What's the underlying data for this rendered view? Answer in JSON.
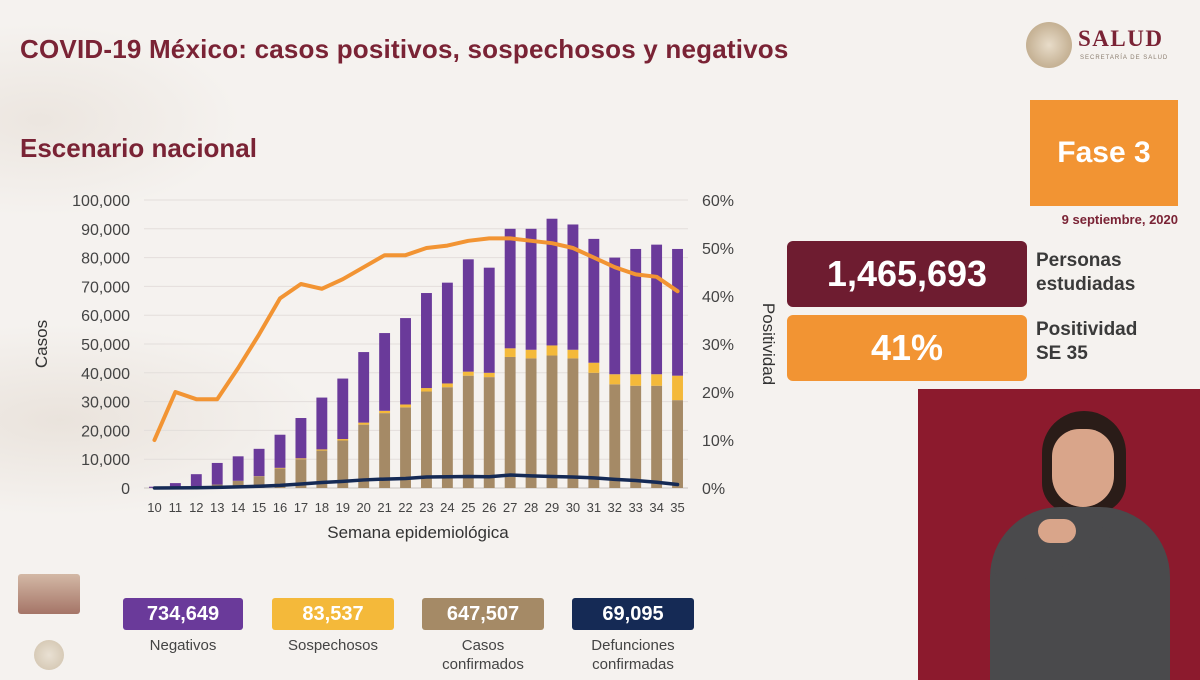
{
  "header": {
    "title": "COVID-19 México: casos positivos, sospechosos y negativos",
    "subtitle": "Escenario nacional"
  },
  "brand": {
    "name": "SALUD",
    "sub": "SECRETARÍA DE SALUD"
  },
  "phase": {
    "label": "Fase 3",
    "date": "9 septiembre, 2020"
  },
  "stats": {
    "studied_value": "1,465,693",
    "studied_label_1": "Personas",
    "studied_label_2": "estudiadas",
    "positivity_value": "41%",
    "positivity_label_1": "Positividad",
    "positivity_label_2": "SE 35"
  },
  "kpis": {
    "negatives_value": "734,649",
    "negatives_label": "Negativos",
    "suspects_value": "83,537",
    "suspects_label": "Sospechosos",
    "confirmed_value": "647,507",
    "confirmed_label_1": "Casos",
    "confirmed_label_2": "confirmados",
    "deaths_value": "69,095",
    "deaths_label_1": "Defunciones",
    "deaths_label_2": "confirmadas"
  },
  "colors": {
    "title": "#7a2335",
    "negatives": "#6a3a9a",
    "suspects": "#f4b93a",
    "confirmed": "#a58a66",
    "deaths": "#152a55",
    "positivity_line": "#f29433"
  },
  "chart_data": {
    "type": "bar",
    "stacked": true,
    "xlabel": "Semana epidemiológica",
    "ylabel": "Casos",
    "y2label": "Positividad",
    "ylim": [
      0,
      100000
    ],
    "y2lim": [
      0,
      60
    ],
    "yticks": [
      "0",
      "10,000",
      "20,000",
      "30,000",
      "40,000",
      "50,000",
      "60,000",
      "70,000",
      "80,000",
      "90,000",
      "100,000"
    ],
    "y2ticks": [
      "0%",
      "10%",
      "20%",
      "30%",
      "40%",
      "50%",
      "60%"
    ],
    "categories": [
      "10",
      "11",
      "12",
      "13",
      "14",
      "15",
      "16",
      "17",
      "18",
      "19",
      "20",
      "21",
      "22",
      "23",
      "24",
      "25",
      "26",
      "27",
      "28",
      "29",
      "30",
      "31",
      "32",
      "33",
      "34",
      "35"
    ],
    "grid": true,
    "legend": "none",
    "series": [
      {
        "name": "Casos confirmados",
        "kind": "bar",
        "values": [
          50,
          200,
          600,
          1200,
          2500,
          4000,
          6800,
          10000,
          13000,
          16500,
          22000,
          26000,
          28000,
          33500,
          35000,
          39000,
          38500,
          45500,
          45000,
          46000,
          45000,
          40000,
          36000,
          35500,
          35500,
          30500
        ]
      },
      {
        "name": "Sospechosos",
        "kind": "bar",
        "values": [
          0,
          0,
          0,
          0,
          0,
          100,
          200,
          300,
          400,
          500,
          700,
          800,
          1000,
          1200,
          1300,
          1400,
          1500,
          3000,
          3000,
          3500,
          3000,
          3500,
          3500,
          4000,
          4000,
          8500
        ]
      },
      {
        "name": "Negativos",
        "kind": "bar",
        "values": [
          400,
          1500,
          4200,
          7500,
          8500,
          9500,
          11500,
          14000,
          18000,
          21000,
          24500,
          27000,
          30000,
          33000,
          35000,
          39000,
          36500,
          41500,
          42000,
          44000,
          43500,
          43000,
          40500,
          43500,
          45000,
          44000
        ]
      },
      {
        "name": "Defunciones confirmadas",
        "kind": "line",
        "axis": "y",
        "values": [
          0,
          50,
          100,
          200,
          400,
          600,
          900,
          1400,
          1900,
          2300,
          2800,
          3100,
          3300,
          3800,
          3900,
          4000,
          3900,
          4500,
          4200,
          4000,
          3800,
          3500,
          3000,
          2600,
          2000,
          1200
        ]
      },
      {
        "name": "Positividad",
        "kind": "line",
        "axis": "y2",
        "values": [
          10,
          20,
          18.5,
          18.5,
          25,
          32,
          39.5,
          42.5,
          41.5,
          43.5,
          46,
          48.5,
          48.5,
          50,
          50.5,
          51.5,
          52,
          52,
          51.5,
          51,
          50,
          48,
          46,
          44.5,
          44,
          41
        ]
      }
    ]
  }
}
